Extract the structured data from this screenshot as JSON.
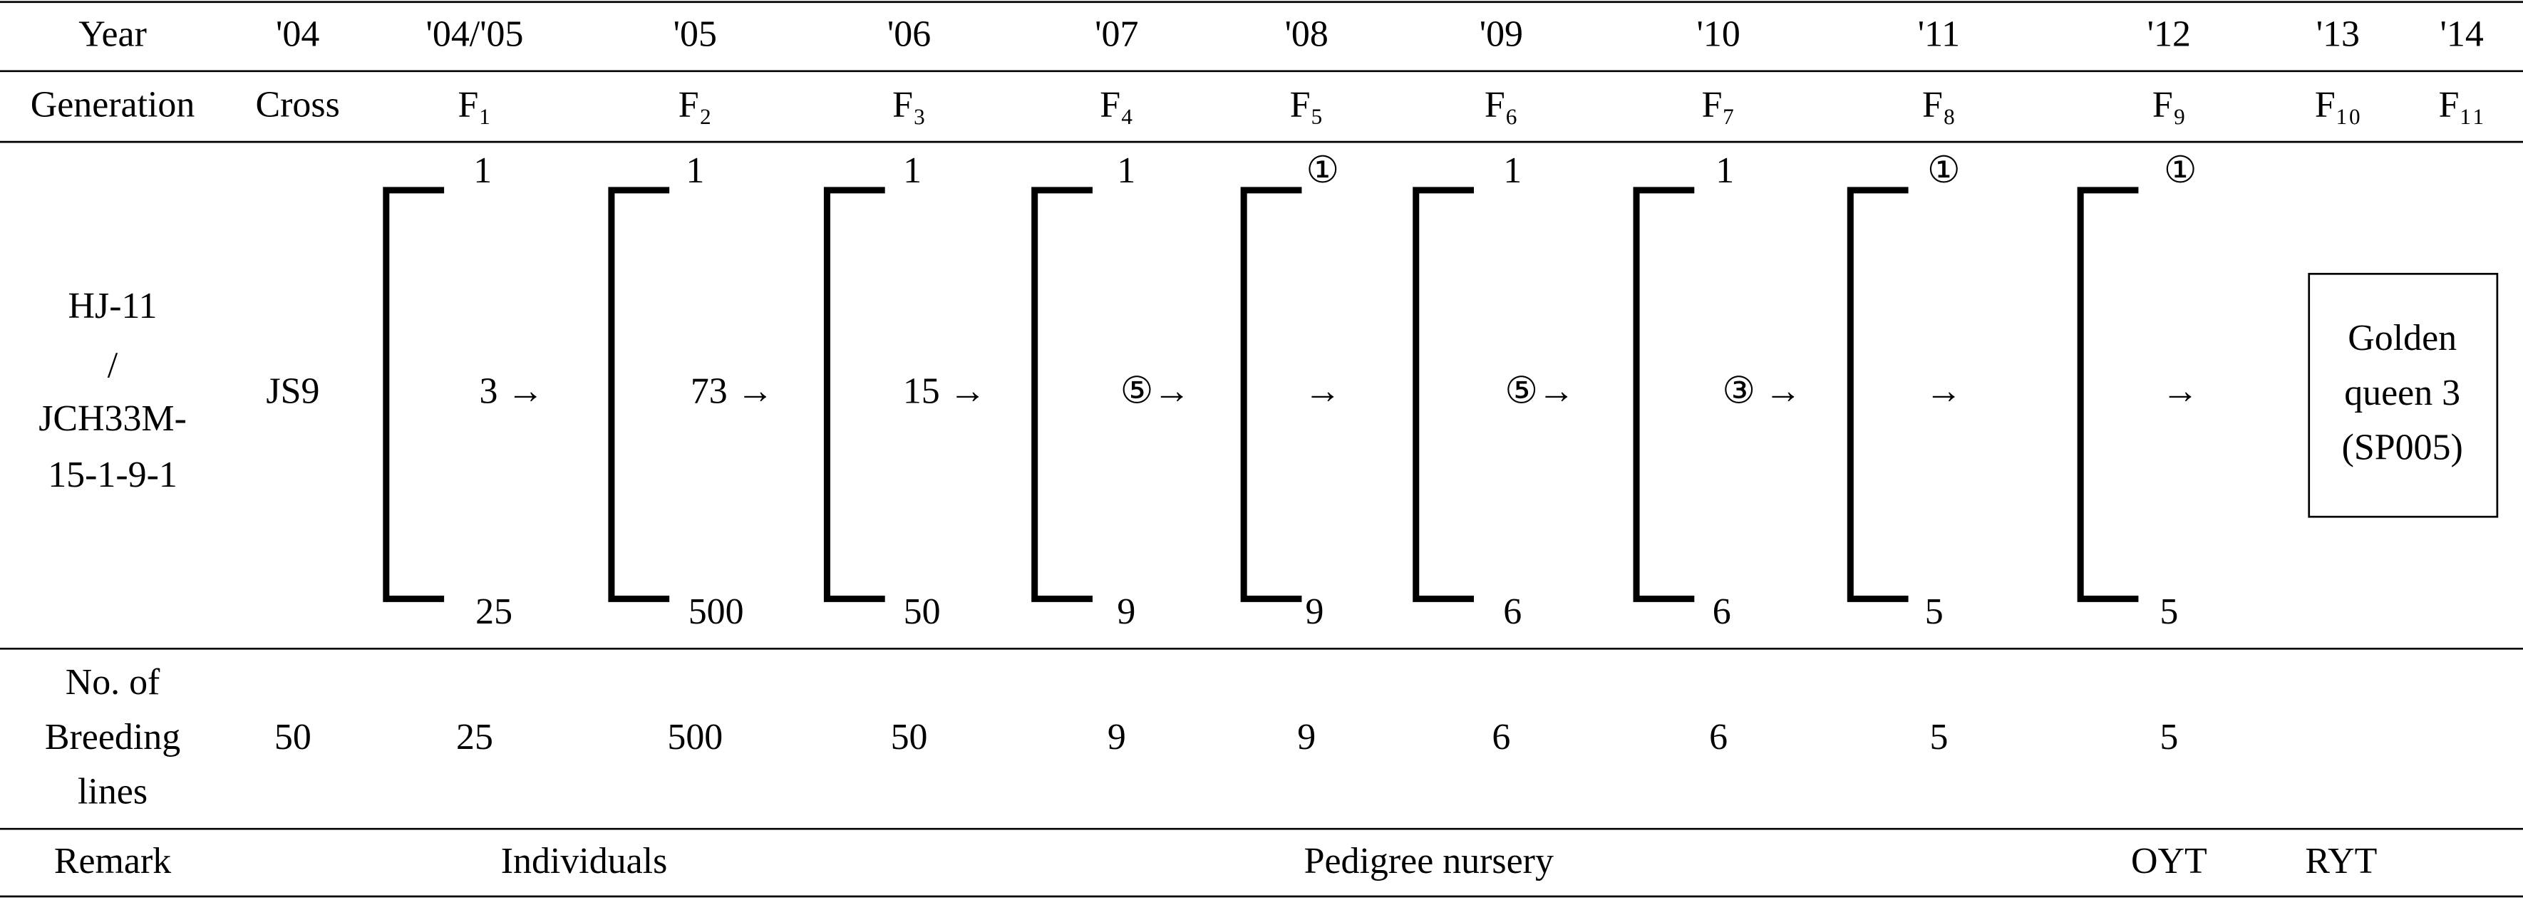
{
  "table": {
    "year_row": [
      "Year",
      "'04",
      "'04/'05",
      "'05",
      "'06",
      "'07",
      "'08",
      "'09",
      "'10",
      "'11",
      "'12",
      "'13",
      "'14"
    ],
    "generation_row": [
      "Generation",
      "Cross",
      "F₁",
      "F₂",
      "F₃",
      "F₄",
      "F₅",
      "F₆",
      "F₇",
      "F₈",
      "F₉",
      "F₁₀",
      "F₁₁"
    ],
    "cross": {
      "parents": [
        "HJ-11",
        "/",
        "JCH33M-",
        "15-1-9-1"
      ],
      "cross_name": "JS9"
    },
    "brackets": [
      {
        "top": "1",
        "middle": "3 →",
        "bottom": "25"
      },
      {
        "top": "1",
        "middle": "73 →",
        "bottom": "500"
      },
      {
        "top": "1",
        "middle": "15 →",
        "bottom": "50"
      },
      {
        "top": "1",
        "middle": "⑤→",
        "bottom": "9"
      },
      {
        "top": "①",
        "middle": "→",
        "bottom": "9"
      },
      {
        "top": "1",
        "middle": "⑤→",
        "bottom": "6"
      },
      {
        "top": "1",
        "middle": "③ →",
        "bottom": "6"
      },
      {
        "top": "①",
        "middle": "→",
        "bottom": "5"
      },
      {
        "top": "①",
        "middle": "→",
        "bottom": "5"
      }
    ],
    "result_box": [
      "Golden",
      "queen 3",
      "(SP005)"
    ],
    "breeding_lines": {
      "label": [
        "No. of",
        "Breeding",
        "lines"
      ],
      "values": [
        "50",
        "25",
        "500",
        "50",
        "9",
        "9",
        "6",
        "6",
        "5",
        "5"
      ]
    },
    "remark": {
      "label": "Remark",
      "items": [
        "Individuals",
        "Pedigree nursery",
        "OYT",
        "RYT"
      ]
    }
  }
}
